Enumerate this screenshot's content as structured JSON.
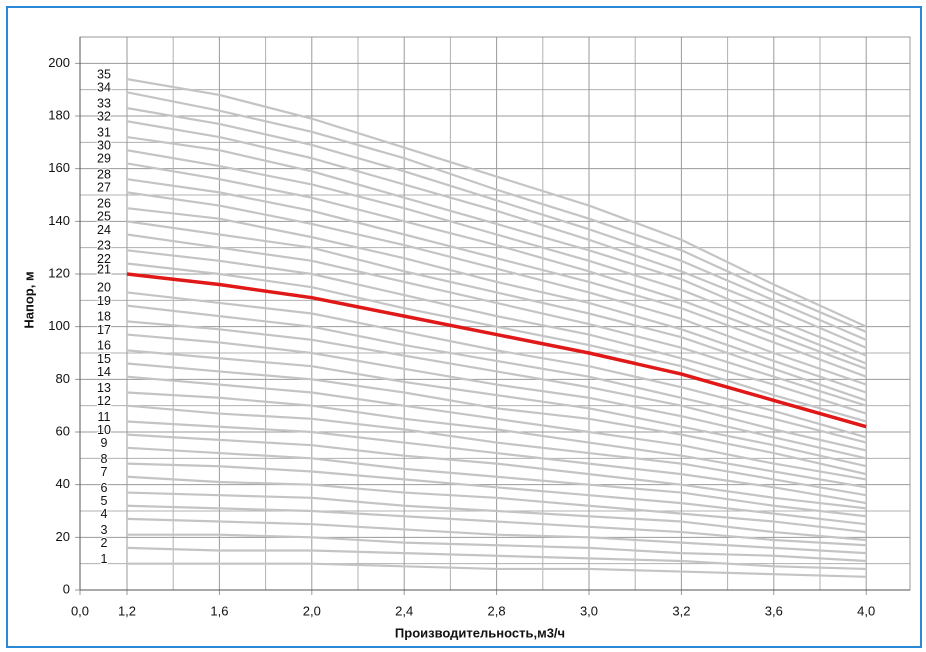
{
  "chart_data": {
    "type": "line",
    "x_label": "Производительность,м3/ч",
    "y_label": "Напор, м",
    "categories": [
      "0,0",
      "1,2",
      "1,6",
      "2,0",
      "2,4",
      "2,8",
      "3,0",
      "3,2",
      "3,6",
      "4,0"
    ],
    "ylim": [
      0,
      210
    ],
    "yticks": [
      0,
      20,
      40,
      60,
      80,
      100,
      120,
      140,
      160,
      180,
      200
    ],
    "grid": true,
    "series": [
      {
        "name": "1",
        "color": "#c4c4c4",
        "values": [
          null,
          10,
          10,
          10,
          9,
          8,
          8,
          7,
          6,
          5
        ]
      },
      {
        "name": "2",
        "color": "#c4c4c4",
        "values": [
          null,
          16,
          15,
          15,
          14,
          13,
          12,
          11,
          9,
          8
        ]
      },
      {
        "name": "3",
        "color": "#c4c4c4",
        "values": [
          null,
          21,
          21,
          20,
          18,
          17,
          16,
          14,
          13,
          11
        ]
      },
      {
        "name": "4",
        "color": "#c4c4c4",
        "values": [
          null,
          27,
          26,
          25,
          23,
          21,
          20,
          18,
          16,
          14
        ]
      },
      {
        "name": "5",
        "color": "#c4c4c4",
        "values": [
          null,
          32,
          31,
          30,
          28,
          26,
          24,
          22,
          19,
          17
        ]
      },
      {
        "name": "6",
        "color": "#c4c4c4",
        "values": [
          null,
          37,
          36,
          35,
          32,
          30,
          28,
          26,
          22,
          19
        ]
      },
      {
        "name": "7",
        "color": "#c4c4c4",
        "values": [
          null,
          43,
          41,
          40,
          37,
          35,
          32,
          29,
          26,
          22
        ]
      },
      {
        "name": "8",
        "color": "#c4c4c4",
        "values": [
          null,
          48,
          47,
          45,
          42,
          39,
          36,
          33,
          29,
          25
        ]
      },
      {
        "name": "9",
        "color": "#c4c4c4",
        "values": [
          null,
          54,
          52,
          50,
          46,
          43,
          40,
          37,
          32,
          28
        ]
      },
      {
        "name": "10",
        "color": "#c4c4c4",
        "values": [
          null,
          59,
          57,
          55,
          51,
          48,
          44,
          40,
          35,
          31
        ]
      },
      {
        "name": "11",
        "color": "#c4c4c4",
        "values": [
          null,
          64,
          62,
          60,
          56,
          52,
          48,
          44,
          39,
          33
        ]
      },
      {
        "name": "12",
        "color": "#c4c4c4",
        "values": [
          null,
          70,
          67,
          65,
          61,
          56,
          52,
          48,
          42,
          36
        ]
      },
      {
        "name": "13",
        "color": "#c4c4c4",
        "values": [
          null,
          75,
          73,
          70,
          65,
          61,
          56,
          51,
          45,
          39
        ]
      },
      {
        "name": "14",
        "color": "#c4c4c4",
        "values": [
          null,
          81,
          78,
          75,
          70,
          65,
          60,
          55,
          48,
          42
        ]
      },
      {
        "name": "15",
        "color": "#c4c4c4",
        "values": [
          null,
          86,
          83,
          80,
          75,
          69,
          65,
          59,
          52,
          44
        ]
      },
      {
        "name": "16",
        "color": "#c4c4c4",
        "values": [
          null,
          91,
          88,
          85,
          79,
          74,
          69,
          62,
          55,
          47
        ]
      },
      {
        "name": "17",
        "color": "#c4c4c4",
        "values": [
          null,
          97,
          94,
          90,
          84,
          78,
          73,
          66,
          58,
          50
        ]
      },
      {
        "name": "18",
        "color": "#c4c4c4",
        "values": [
          null,
          102,
          99,
          95,
          89,
          83,
          77,
          70,
          61,
          53
        ]
      },
      {
        "name": "19",
        "color": "#c4c4c4",
        "values": [
          null,
          108,
          104,
          100,
          93,
          87,
          81,
          73,
          65,
          56
        ]
      },
      {
        "name": "20",
        "color": "#c4c4c4",
        "values": [
          null,
          113,
          109,
          105,
          98,
          91,
          85,
          77,
          68,
          58
        ]
      },
      {
        "name": "21",
        "color": "#e01818",
        "values": [
          null,
          120,
          116,
          111,
          104,
          97,
          90,
          82,
          72,
          62
        ]
      },
      {
        "name": "22",
        "color": "#c4c4c4",
        "values": [
          null,
          124,
          120,
          115,
          107,
          100,
          93,
          85,
          74,
          64
        ]
      },
      {
        "name": "23",
        "color": "#c4c4c4",
        "values": [
          null,
          129,
          125,
          120,
          112,
          104,
          97,
          88,
          78,
          67
        ]
      },
      {
        "name": "24",
        "color": "#c4c4c4",
        "values": [
          null,
          135,
          130,
          125,
          117,
          109,
          101,
          92,
          81,
          70
        ]
      },
      {
        "name": "25",
        "color": "#c4c4c4",
        "values": [
          null,
          140,
          135,
          130,
          121,
          113,
          105,
          96,
          84,
          72
        ]
      },
      {
        "name": "26",
        "color": "#c4c4c4",
        "values": [
          null,
          145,
          141,
          134,
          126,
          117,
          109,
          99,
          87,
          75
        ]
      },
      {
        "name": "27",
        "color": "#c4c4c4",
        "values": [
          null,
          151,
          146,
          139,
          131,
          122,
          113,
          103,
          90,
          78
        ]
      },
      {
        "name": "28",
        "color": "#c4c4c4",
        "values": [
          null,
          156,
          151,
          144,
          135,
          126,
          117,
          107,
          94,
          81
        ]
      },
      {
        "name": "29",
        "color": "#c4c4c4",
        "values": [
          null,
          162,
          156,
          149,
          140,
          131,
          121,
          110,
          97,
          84
        ]
      },
      {
        "name": "30",
        "color": "#c4c4c4",
        "values": [
          null,
          167,
          161,
          154,
          145,
          135,
          125,
          114,
          100,
          86
        ]
      },
      {
        "name": "31",
        "color": "#c4c4c4",
        "values": [
          null,
          172,
          167,
          159,
          149,
          139,
          129,
          118,
          103,
          89
        ]
      },
      {
        "name": "32",
        "color": "#c4c4c4",
        "values": [
          null,
          178,
          172,
          164,
          154,
          144,
          133,
          121,
          107,
          92
        ]
      },
      {
        "name": "33",
        "color": "#c4c4c4",
        "values": [
          null,
          183,
          177,
          169,
          159,
          148,
          137,
          125,
          110,
          95
        ]
      },
      {
        "name": "34",
        "color": "#c4c4c4",
        "values": [
          null,
          189,
          182,
          174,
          164,
          152,
          141,
          129,
          113,
          98
        ]
      },
      {
        "name": "35",
        "color": "#c4c4c4",
        "values": [
          null,
          194,
          188,
          179,
          168,
          157,
          146,
          133,
          116,
          100
        ]
      }
    ]
  }
}
